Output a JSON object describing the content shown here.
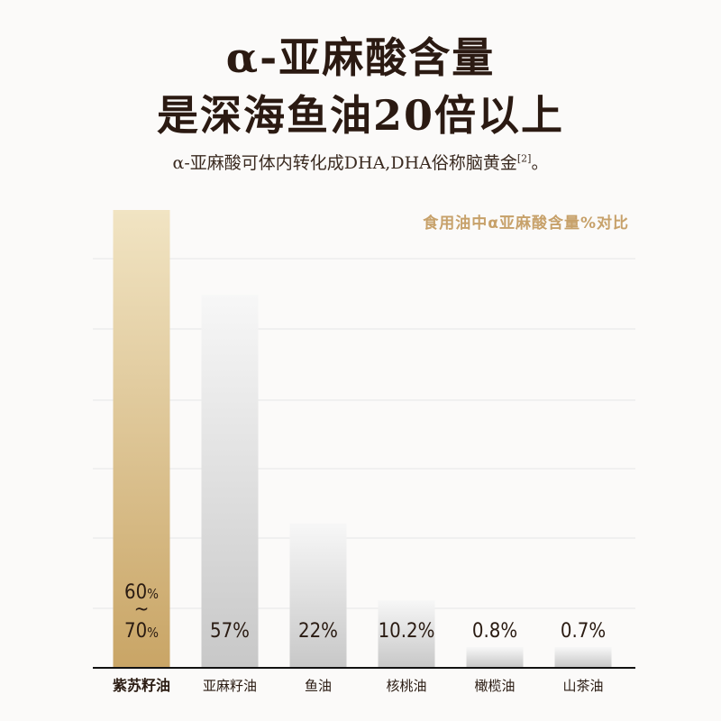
{
  "header": {
    "title_line1": "α-亚麻酸含量",
    "title_line2": "是深海鱼油20倍以上",
    "subtitle": "α-亚麻酸可体内转化成DHA,DHA俗称脑黄金",
    "footnote": "[2]",
    "subtitle_end": "。"
  },
  "chart_data": {
    "type": "bar",
    "title": "食用油中α亚麻酸含量%对比",
    "categories": [
      "紫苏籽油",
      "亚麻籽油",
      "鱼油",
      "核桃油",
      "橄榄油",
      "山茶油"
    ],
    "values": [
      70,
      57,
      22,
      10.2,
      0.8,
      0.7
    ],
    "value_labels": [
      "60%~70%",
      "57%",
      "22%",
      "10.2%",
      "0.8%",
      "0.7%"
    ],
    "range_label": {
      "low": "60",
      "high": "70",
      "unit": "%",
      "sep": "~"
    },
    "ylim": [
      0,
      70
    ],
    "grid": true,
    "highlight_index": 0,
    "colors": {
      "highlight_top": "#f1e4c3",
      "highlight_bottom": "#c9a566",
      "bar_top": "#f7f7f7",
      "bar_bottom": "#c8c8c8",
      "grid": "#e6e6e6",
      "axis": "#111111"
    }
  }
}
